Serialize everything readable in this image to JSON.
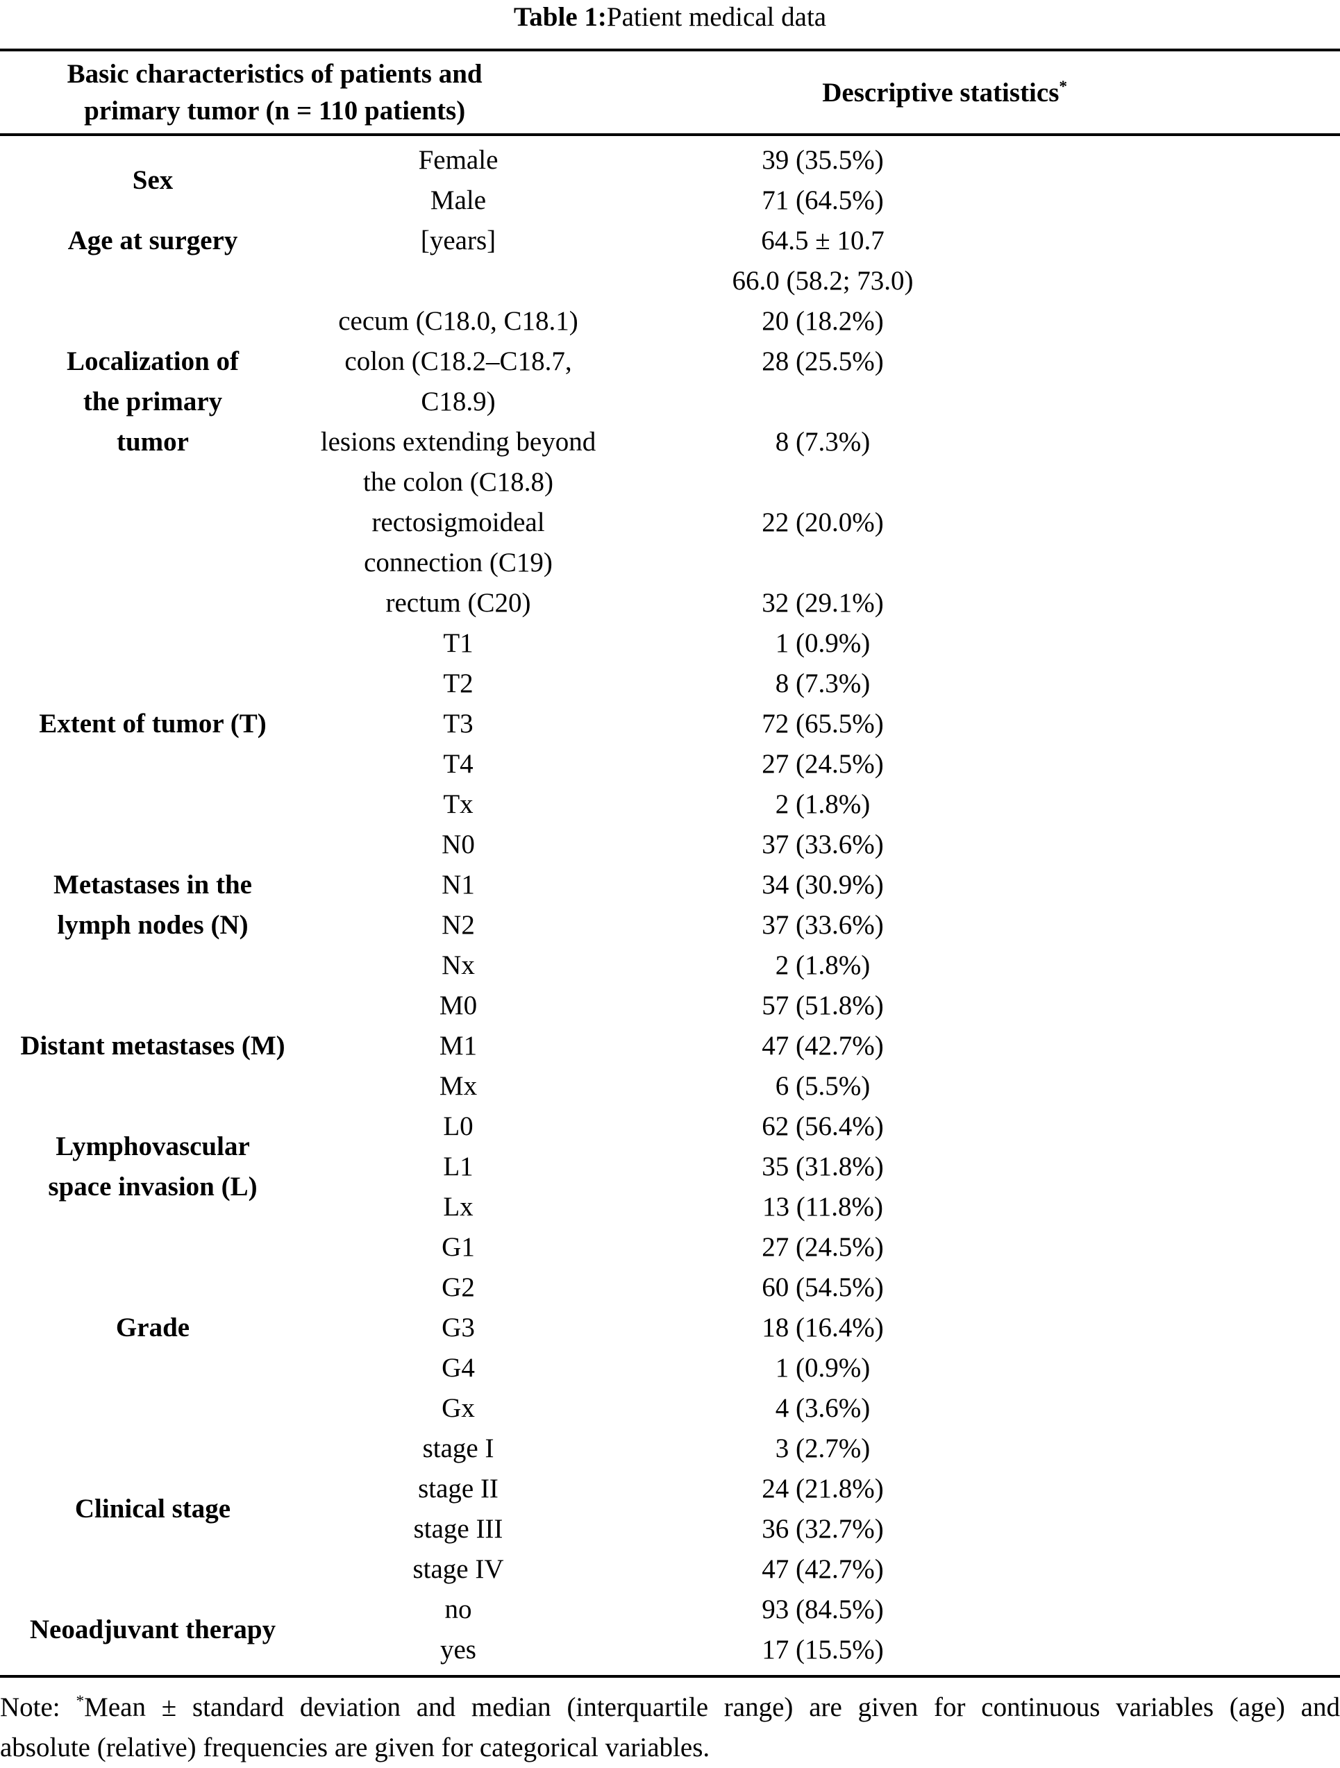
{
  "title": {
    "label": "Table 1:",
    "caption": " Patient medical data"
  },
  "header": {
    "characteristics": "Basic characteristics of patients and\nprimary tumor (n = 110 patients)",
    "statistics": "Descriptive statistics",
    "statistics_sup": "*"
  },
  "table": {
    "groups": [
      {
        "category": "Sex",
        "label_offset_lines": 0.5,
        "rows": [
          {
            "sub": "Female",
            "value": "39 (35.5%)"
          },
          {
            "sub": "Male",
            "value": "71 (64.5%)"
          }
        ]
      },
      {
        "category": "Age at surgery",
        "label_offset_lines": 0,
        "rows": [
          {
            "sub": "[years]",
            "value": "64.5 ± 10.7"
          },
          {
            "sub": "",
            "value": "66.0 (58.2; 73.0)"
          }
        ]
      },
      {
        "category": "Localization of\nthe primary\ntumor",
        "label_offset_lines": 1,
        "rows": [
          {
            "sub": "cecum (C18.0, C18.1)",
            "value": "20 (18.2%)"
          },
          {
            "sub": "colon (C18.2–C18.7,\nC18.9)",
            "value": "28 (25.5%)"
          },
          {
            "sub": "lesions extending beyond\nthe colon (C18.8)",
            "value": "8 (7.3%)"
          },
          {
            "sub": "rectosigmoideal\nconnection (C19)",
            "value": "22 (20.0%)"
          },
          {
            "sub": "rectum (C20)",
            "value": "32 (29.1%)"
          }
        ]
      },
      {
        "category": "Extent of tumor (T)",
        "label_offset_lines": 2,
        "rows": [
          {
            "sub": "T1",
            "value": "1 (0.9%)"
          },
          {
            "sub": "T2",
            "value": "8 (7.3%)"
          },
          {
            "sub": "T3",
            "value": "72 (65.5%)"
          },
          {
            "sub": "T4",
            "value": "27 (24.5%)"
          },
          {
            "sub": "Tx",
            "value": "2 (1.8%)"
          }
        ]
      },
      {
        "category": "Metastases in the\nlymph nodes (N)",
        "label_offset_lines": 1,
        "rows": [
          {
            "sub": "N0",
            "value": "37 (33.6%)"
          },
          {
            "sub": "N1",
            "value": "34 (30.9%)"
          },
          {
            "sub": "N2",
            "value": "37 (33.6%)"
          },
          {
            "sub": "Nx",
            "value": "2 (1.8%)"
          }
        ]
      },
      {
        "category": "Distant metastases (M)",
        "label_offset_lines": 1,
        "rows": [
          {
            "sub": "M0",
            "value": "57 (51.8%)"
          },
          {
            "sub": "M1",
            "value": "47 (42.7%)"
          },
          {
            "sub": "Mx",
            "value": "6 (5.5%)"
          }
        ]
      },
      {
        "category": "Lymphovascular\nspace invasion (L)",
        "label_offset_lines": 0.5,
        "rows": [
          {
            "sub": "L0",
            "value": "62 (56.4%)"
          },
          {
            "sub": "L1",
            "value": "35 (31.8%)"
          },
          {
            "sub": "Lx",
            "value": "13 (11.8%)"
          }
        ]
      },
      {
        "category": "Grade",
        "label_offset_lines": 2,
        "rows": [
          {
            "sub": "G1",
            "value": "27 (24.5%)"
          },
          {
            "sub": "G2",
            "value": "60 (54.5%)"
          },
          {
            "sub": "G3",
            "value": "18 (16.4%)"
          },
          {
            "sub": "G4",
            "value": "1 (0.9%)"
          },
          {
            "sub": "Gx",
            "value": "4 (3.6%)"
          }
        ]
      },
      {
        "category": "Clinical stage",
        "label_offset_lines": 1.5,
        "rows": [
          {
            "sub": "stage I",
            "value": "3 (2.7%)"
          },
          {
            "sub": "stage II",
            "value": "24 (21.8%)"
          },
          {
            "sub": "stage III",
            "value": "36 (32.7%)"
          },
          {
            "sub": "stage IV",
            "value": "47 (42.7%)"
          }
        ]
      },
      {
        "category": "Neoadjuvant therapy",
        "label_offset_lines": 0.5,
        "rows": [
          {
            "sub": "no",
            "value": "93 (84.5%)"
          },
          {
            "sub": "yes",
            "value": "17 (15.5%)"
          }
        ]
      }
    ]
  },
  "note": {
    "label": "Note:",
    "star": "*",
    "line1": "Mean ± standard deviation and median (interquartile range) are given for continuous variables (age) and",
    "line2": "absolute (relative) frequencies are given for categorical variables."
  }
}
